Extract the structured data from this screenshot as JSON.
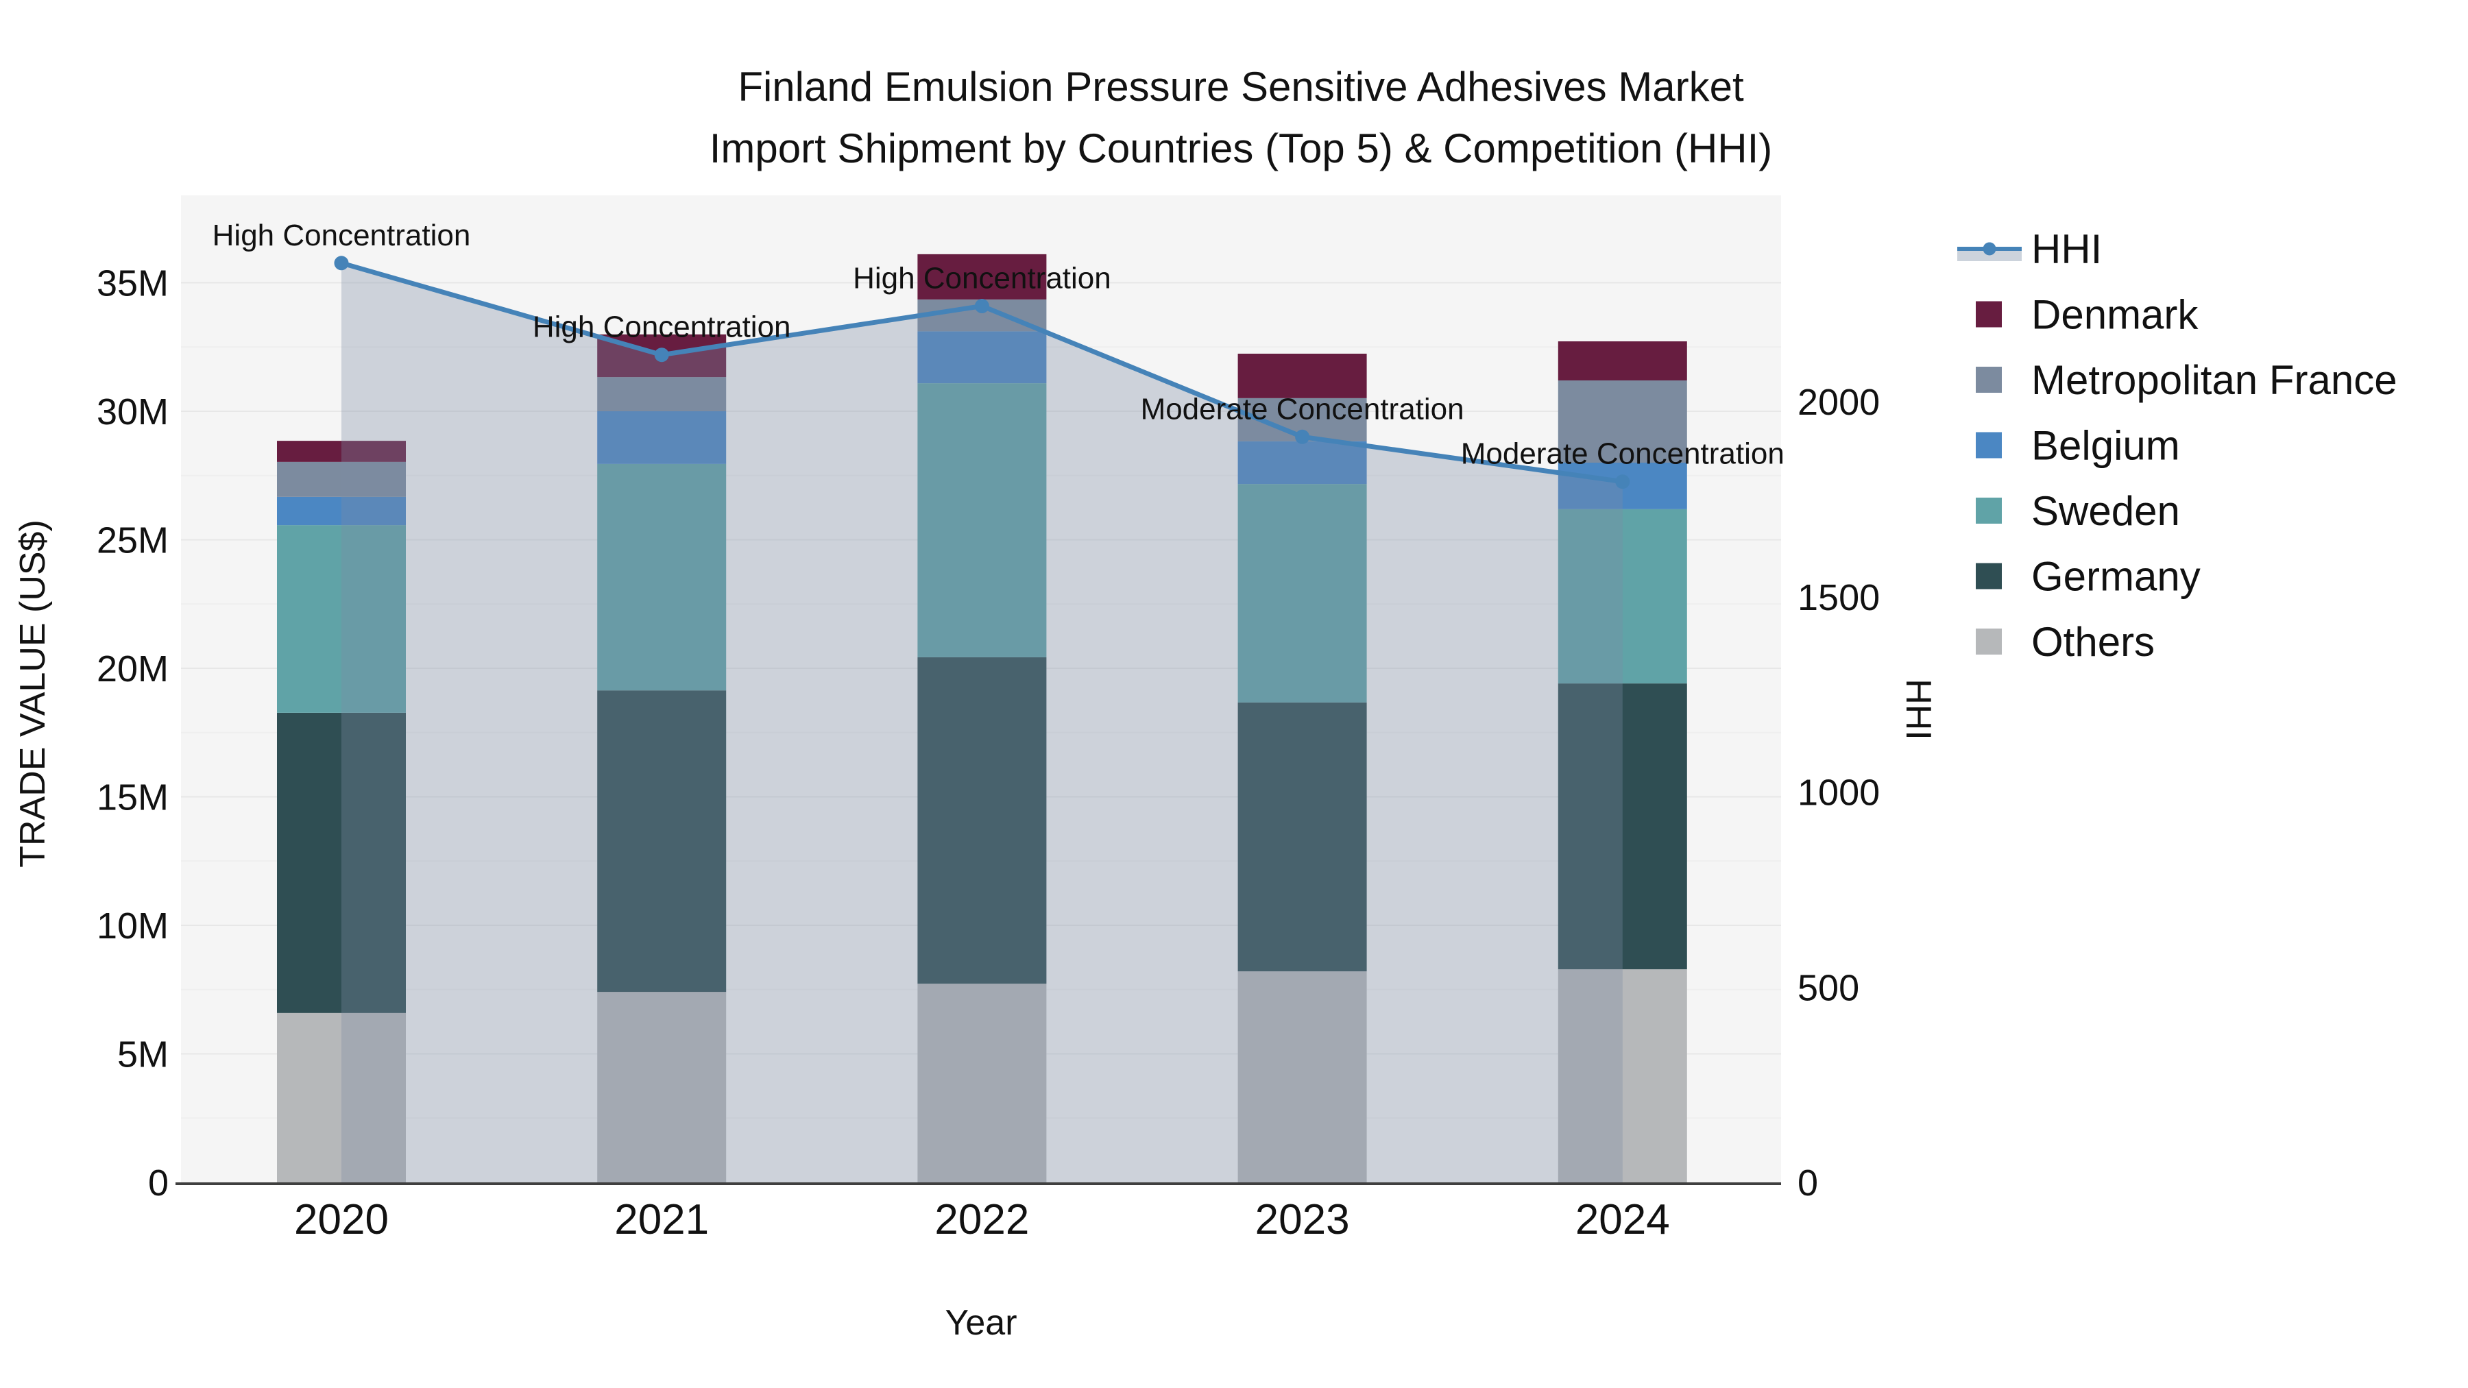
{
  "title": {
    "line1": "Finland Emulsion Pressure Sensitive Adhesives Market",
    "line2": "Import Shipment by Countries (Top 5) & Competition (HHI)"
  },
  "axes": {
    "x_title": "Year",
    "y_left_title": "TRADE VALUE (US$)",
    "y_right_title": "HHI",
    "y_left_ticks": [
      "0",
      "5M",
      "10M",
      "15M",
      "20M",
      "25M",
      "30M",
      "35M"
    ],
    "y_left_tick_values": [
      0,
      5,
      10,
      15,
      20,
      25,
      30,
      35
    ],
    "y_right_ticks": [
      "0",
      "500",
      "1000",
      "1500",
      "2000"
    ],
    "y_right_tick_values": [
      0,
      500,
      1000,
      1500,
      2000
    ]
  },
  "legend": [
    {
      "label": "HHI",
      "type": "line",
      "color": "#4583b8",
      "fill": "#ccd3dc"
    },
    {
      "label": "Denmark",
      "type": "swatch",
      "color": "#671d40"
    },
    {
      "label": "Metropolitan France",
      "type": "swatch",
      "color": "#7c8b9f"
    },
    {
      "label": "Belgium",
      "type": "swatch",
      "color": "#4b87c3"
    },
    {
      "label": "Sweden",
      "type": "swatch",
      "color": "#60a3a7"
    },
    {
      "label": "Germany",
      "type": "swatch",
      "color": "#2f4e53"
    },
    {
      "label": "Others",
      "type": "swatch",
      "color": "#b6b8ba"
    }
  ],
  "chart_data": {
    "type": "bar+line",
    "title": "Finland Emulsion Pressure Sensitive Adhesives Market Import Shipment by Countries (Top 5) & Competition (HHI)",
    "xlabel": "Year",
    "ylabel_left": "TRADE VALUE (US$)",
    "ylabel_right": "HHI",
    "unit": "millions USD",
    "categories": [
      "2020",
      "2021",
      "2022",
      "2023",
      "2024"
    ],
    "stack_order_note": "series listed bottom-to-top of stack",
    "series": [
      {
        "name": "Others",
        "color": "#b6b8ba",
        "values": [
          6.59,
          7.41,
          7.73,
          8.21,
          8.29
        ]
      },
      {
        "name": "Germany",
        "color": "#2f4e53",
        "values": [
          11.68,
          11.73,
          12.7,
          10.46,
          11.12
        ]
      },
      {
        "name": "Sweden",
        "color": "#60a3a7",
        "values": [
          7.3,
          8.81,
          10.66,
          8.5,
          6.78
        ]
      },
      {
        "name": "Belgium",
        "color": "#4b87c3",
        "values": [
          1.1,
          2.05,
          2.02,
          1.66,
          1.81
        ]
      },
      {
        "name": "Metropolitan France",
        "color": "#7c8b9f",
        "values": [
          1.36,
          1.33,
          1.24,
          1.68,
          3.2
        ]
      },
      {
        "name": "Denmark",
        "color": "#671d40",
        "values": [
          0.82,
          1.66,
          1.76,
          1.73,
          1.52
        ]
      }
    ],
    "hhi": {
      "name": "HHI",
      "color": "#4583b8",
      "fill_rgba": "rgba(125,140,165,0.33)",
      "values": [
        2355,
        2120,
        2245,
        1910,
        1795
      ]
    },
    "annotations": [
      "High Concentration",
      "High Concentration",
      "High Concentration",
      "Moderate Concentration",
      "Moderate Concentration"
    ],
    "ylim_left": [
      0,
      38.4
    ],
    "ylim_right": [
      0,
      2530
    ],
    "grid": "horizontal, every 2.5M, faint",
    "legend_position": "right"
  }
}
